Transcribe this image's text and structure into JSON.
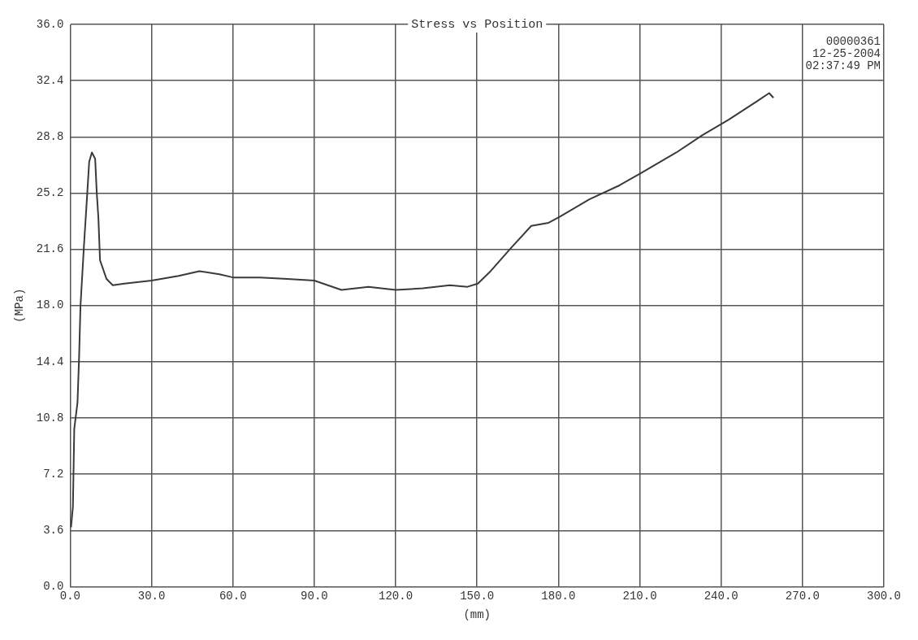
{
  "chart_data": {
    "type": "line",
    "title": "Stress vs Position",
    "xlabel": "(mm)",
    "ylabel": "(MPa)",
    "annotations": [
      "00000361",
      "12-25-2004",
      "02:37:49 PM"
    ],
    "xlim": [
      0,
      300
    ],
    "xticks": [
      {
        "value": 0,
        "label": "0.0"
      },
      {
        "value": 30,
        "label": "30.0"
      },
      {
        "value": 60,
        "label": "60.0"
      },
      {
        "value": 90,
        "label": "90.0"
      },
      {
        "value": 120,
        "label": "120.0"
      },
      {
        "value": 150,
        "label": "150.0"
      },
      {
        "value": 180,
        "label": "180.0"
      },
      {
        "value": 210,
        "label": "210.0"
      },
      {
        "value": 240,
        "label": "240.0"
      },
      {
        "value": 270,
        "label": "270.0"
      },
      {
        "value": 300,
        "label": "300.0"
      }
    ],
    "ylim": [
      0,
      36
    ],
    "yticks": [
      {
        "value": 0,
        "label": "0.0"
      },
      3.6,
      7.2,
      10.8,
      14.4,
      {
        "value": 18,
        "label": "18.0"
      },
      21.6,
      25.2,
      28.8,
      32.4,
      {
        "value": 36,
        "label": "36.0"
      }
    ],
    "grid": true,
    "legend": false,
    "marker": "none",
    "line_style": "solid",
    "series": [
      {
        "color": "#3a3a3a",
        "x": [
          0.3,
          1,
          1.5,
          2.7,
          3.3,
          3.8,
          5.1,
          6.3,
          7,
          8,
          9.2,
          9.8,
          10.4,
          11,
          13.4,
          15.7,
          20,
          30,
          40,
          47.6,
          55,
          60,
          70,
          80,
          90,
          100,
          110,
          120,
          130,
          140,
          146.5,
          150.3,
          155,
          162.6,
          170,
          176.4,
          180.7,
          191.4,
          202,
          210.7,
          223.5,
          233,
          242.8,
          253.4,
          257.7,
          259.3
        ],
        "values": [
          3.8,
          5.1,
          10.1,
          11.8,
          14.8,
          18,
          21.9,
          25.2,
          27.2,
          27.8,
          27.4,
          25.2,
          23.6,
          20.9,
          19.7,
          19.3,
          19.4,
          19.6,
          19.9,
          20.2,
          20,
          19.8,
          19.8,
          19.7,
          19.6,
          19,
          19.2,
          19,
          19.1,
          19.3,
          19.2,
          19.4,
          20.2,
          21.7,
          23.1,
          23.3,
          23.7,
          24.8,
          25.65,
          26.5,
          27.8,
          28.9,
          29.9,
          31.1,
          31.6,
          31.3
        ]
      }
    ]
  }
}
